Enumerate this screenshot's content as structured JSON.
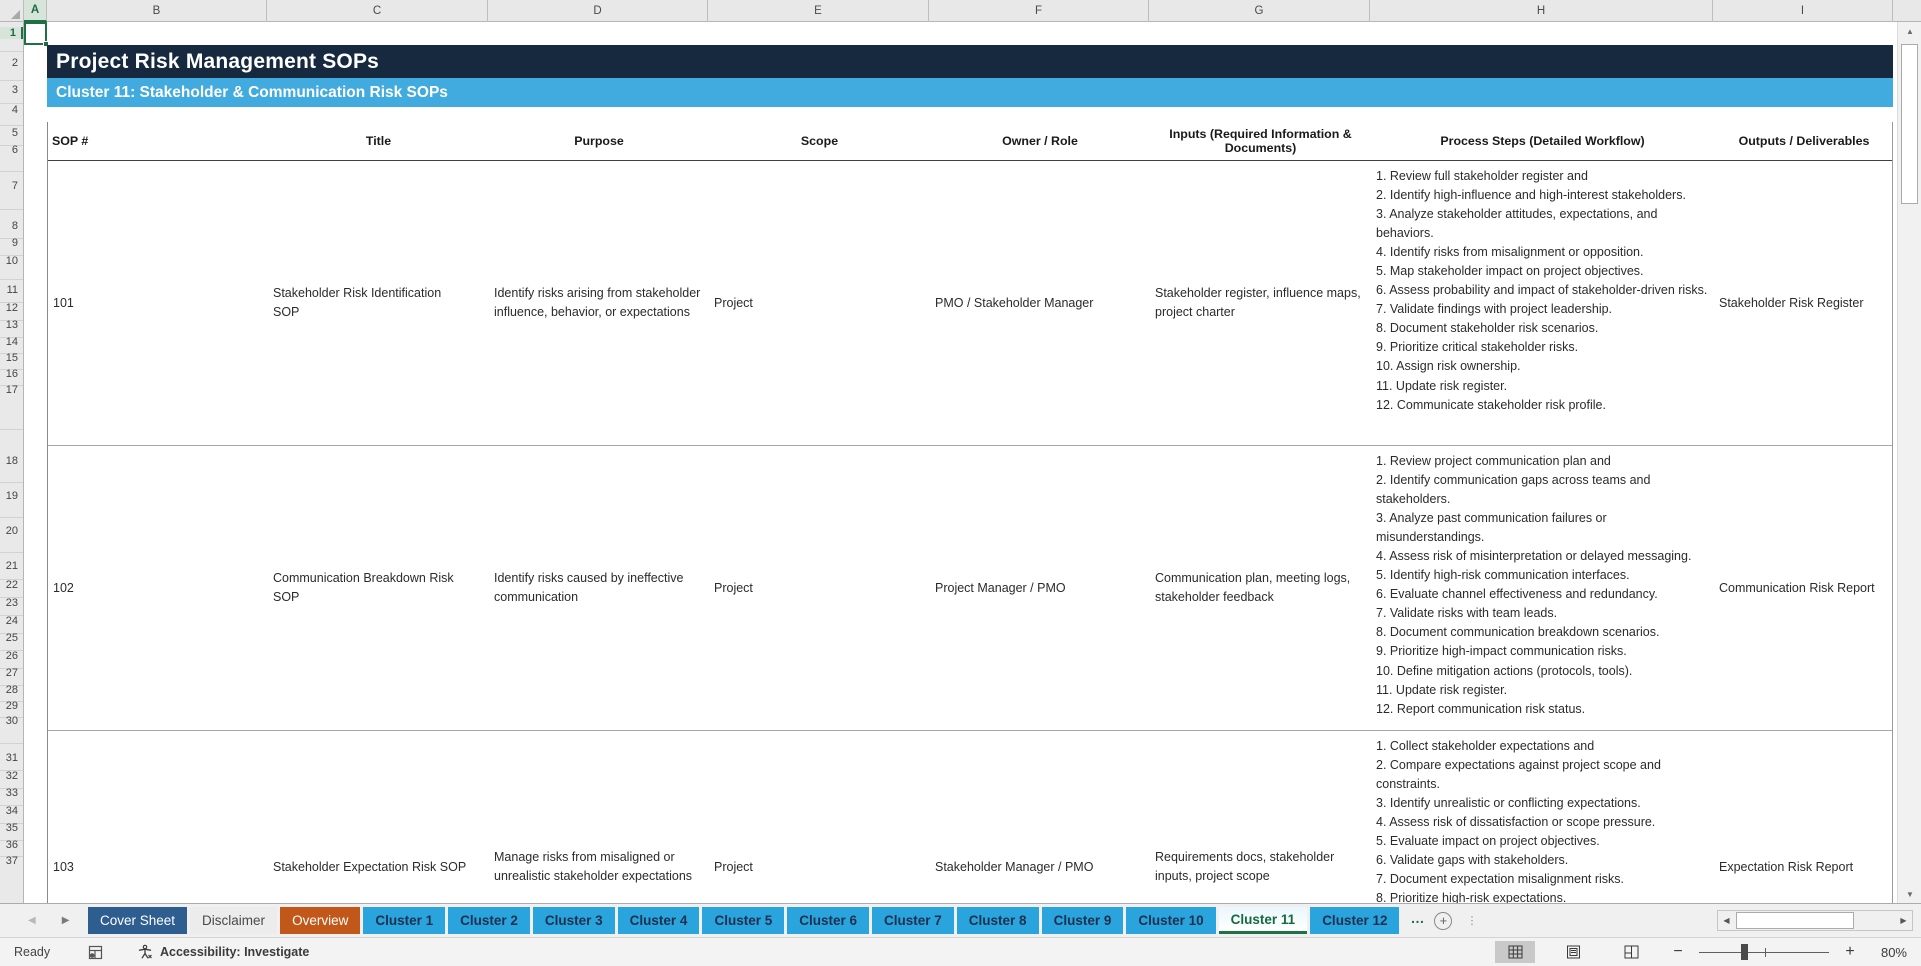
{
  "sheet": {
    "column_letters": [
      "A",
      "B",
      "C",
      "D",
      "E",
      "F",
      "G",
      "H",
      "I"
    ],
    "selected_cell_column": "A",
    "selected_cell_row": "1",
    "row_numbers": [
      "1",
      "2",
      "3",
      "4",
      "5",
      "6",
      "7",
      "8",
      "9",
      "10",
      "11",
      "12",
      "13",
      "14",
      "15",
      "16",
      "17",
      "18",
      "19",
      "20",
      "21",
      "22",
      "23",
      "24",
      "25",
      "26",
      "27",
      "28",
      "29",
      "30",
      "31",
      "32",
      "33",
      "34",
      "35",
      "36",
      "37"
    ]
  },
  "banner": {
    "title": "Project Risk Management SOPs",
    "subtitle": "Cluster 11: Stakeholder & Communication Risk SOPs",
    "title_bg": "#16293e",
    "subtitle_bg": "#41abdf"
  },
  "table": {
    "headers": [
      "SOP #",
      "Title",
      "Purpose",
      "Scope",
      "Owner / Role",
      "Inputs (Required Information & Documents)",
      "Process Steps (Detailed Workflow)",
      "Outputs / Deliverables"
    ],
    "rows": [
      {
        "sop": "101",
        "title": "Stakeholder Risk Identification SOP",
        "purpose": "Identify risks arising from stakeholder influence, behavior, or expectations",
        "scope": "Project",
        "owner": "PMO / Stakeholder Manager",
        "inputs": "Stakeholder register, influence maps, project charter",
        "steps": [
          "1. Review full stakeholder register and",
          "2. Identify high-influence and high-interest stakeholders.",
          "3. Analyze stakeholder attitudes, expectations, and behaviors.",
          "4. Identify risks from misalignment or opposition.",
          "5. Map stakeholder impact on project objectives.",
          "6. Assess probability and impact of stakeholder-driven risks.",
          "7. Validate findings with project leadership.",
          "8. Document stakeholder risk scenarios.",
          "9. Prioritize critical stakeholder risks.",
          "10. Assign risk ownership.",
          "11. Update risk register.",
          "12. Communicate stakeholder risk profile."
        ],
        "outputs": "Stakeholder Risk Register"
      },
      {
        "sop": "102",
        "title": "Communication Breakdown Risk SOP",
        "purpose": "Identify risks caused by ineffective communication",
        "scope": "Project",
        "owner": "Project Manager / PMO",
        "inputs": "Communication plan, meeting logs, stakeholder feedback",
        "steps": [
          "1. Review project communication plan and",
          "2. Identify communication gaps across teams and stakeholders.",
          "3. Analyze past communication failures or misunderstandings.",
          "4. Assess risk of misinterpretation or delayed messaging.",
          "5. Identify high-risk communication interfaces.",
          "6. Evaluate channel effectiveness and redundancy.",
          "7. Validate risks with team leads.",
          "8. Document communication breakdown scenarios.",
          "9. Prioritize high-impact communication risks.",
          "10. Define mitigation actions (protocols, tools).",
          "11. Update risk register.",
          "12. Report communication risk status."
        ],
        "outputs": "Communication Risk Report"
      },
      {
        "sop": "103",
        "title": "Stakeholder Expectation Risk SOP",
        "purpose": "Manage risks from misaligned or unrealistic stakeholder expectations",
        "scope": "Project",
        "owner": "Stakeholder Manager / PMO",
        "inputs": "Requirements docs, stakeholder inputs, project scope",
        "steps": [
          "1. Collect stakeholder expectations and",
          "2. Compare expectations against project scope and constraints.",
          "3. Identify unrealistic or conflicting expectations.",
          "4. Assess risk of dissatisfaction or scope pressure.",
          "5. Evaluate impact on project objectives.",
          "6. Validate gaps with stakeholders.",
          "7. Document expectation misalignment risks.",
          "8. Prioritize high-risk expectations."
        ],
        "outputs": "Expectation Risk Report"
      }
    ]
  },
  "tab_bar": {
    "tabs": [
      {
        "label": "Cover Sheet",
        "style": "cover"
      },
      {
        "label": "Disclaimer",
        "style": "muted"
      },
      {
        "label": "Overview",
        "style": "overview"
      },
      {
        "label": "Cluster 1",
        "style": "cluster"
      },
      {
        "label": "Cluster 2",
        "style": "cluster"
      },
      {
        "label": "Cluster 3",
        "style": "cluster"
      },
      {
        "label": "Cluster 4",
        "style": "cluster"
      },
      {
        "label": "Cluster 5",
        "style": "cluster"
      },
      {
        "label": "Cluster 6",
        "style": "cluster"
      },
      {
        "label": "Cluster 7",
        "style": "cluster"
      },
      {
        "label": "Cluster 8",
        "style": "cluster"
      },
      {
        "label": "Cluster 9",
        "style": "cluster"
      },
      {
        "label": "Cluster 10",
        "style": "cluster"
      },
      {
        "label": "Cluster 11",
        "style": "active"
      },
      {
        "label": "Cluster 12",
        "style": "cluster"
      }
    ],
    "more_label": "…",
    "colors": {
      "cover": "#2e5e90",
      "overview": "#c2571a",
      "cluster": "#29a4dd",
      "active_text": "#156a3f",
      "active_underline": "#1e7145"
    }
  },
  "status_bar": {
    "mode": "Ready",
    "accessibility": "Accessibility: Investigate",
    "zoom_level": "80%"
  }
}
